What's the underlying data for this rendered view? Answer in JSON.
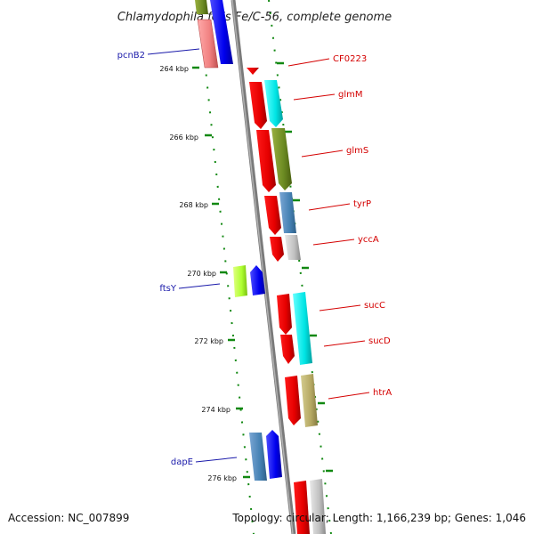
{
  "title": "Chlamydophila felis Fe/C-56, complete genome",
  "footer": {
    "accession": "Accession: NC_007899",
    "summary": "Topology: circular; Length: 1,166,239 bp; Genes: 1,046"
  },
  "axis_ticks": [
    "264 kbp",
    "266 kbp",
    "268 kbp",
    "270 kbp",
    "272 kbp",
    "274 kbp",
    "276 kbp"
  ],
  "gene_labels": {
    "pcnB2": "pcnB2",
    "CF0223": "CF0223",
    "glmM": "glmM",
    "glmS": "glmS",
    "tyrP": "tyrP",
    "yccA": "yccA",
    "ftsY": "ftsY",
    "sucC": "sucC",
    "sucD": "sucD",
    "htrA": "htrA",
    "dapE": "dapE"
  },
  "colors": {
    "backbone": "#8c8c8c",
    "tick_green": "#118811",
    "forward_label": "#d40000",
    "reverse_label": "#1a1aaa"
  }
}
